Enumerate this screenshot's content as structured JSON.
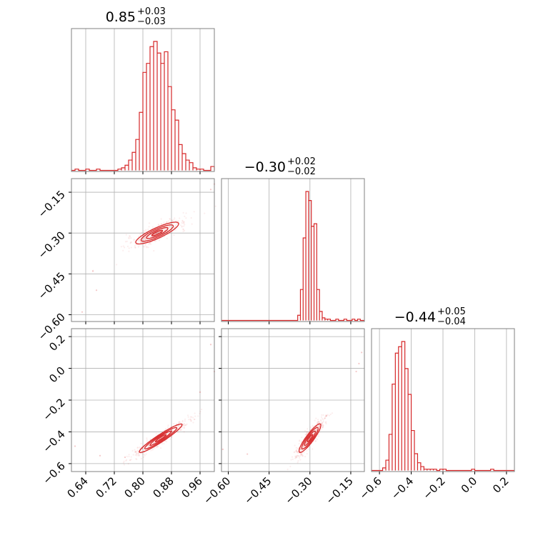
{
  "chart_data": {
    "type": "corner",
    "colors": {
      "line": "#d62728",
      "grid": "#b0b0b0",
      "frame": "#808080"
    },
    "grid": true,
    "parameters": [
      {
        "id": "p0",
        "range": [
          0.6,
          1.0
        ],
        "ticks": [
          0.64,
          0.72,
          0.8,
          0.88,
          0.96
        ],
        "tick_labels": [
          "0.64",
          "0.72",
          "0.80",
          "0.88",
          "0.96"
        ],
        "title": {
          "median": "0.85",
          "plus": "+0.03",
          "minus": "−0.03"
        }
      },
      {
        "id": "p1",
        "range": [
          -0.625,
          -0.1
        ],
        "ticks": [
          -0.6,
          -0.45,
          -0.3,
          -0.15
        ],
        "tick_labels": [
          "−0.60",
          "−0.45",
          "−0.30",
          "−0.15"
        ],
        "title": {
          "median": "−0.30",
          "plus": "+0.02",
          "minus": "−0.02"
        }
      },
      {
        "id": "p2",
        "range": [
          -0.65,
          0.25
        ],
        "ticks": [
          -0.6,
          -0.4,
          -0.2,
          0.0,
          0.2
        ],
        "tick_labels": [
          "−0.6",
          "−0.4",
          "−0.2",
          "0.0",
          "0.2"
        ],
        "title": {
          "median": "−0.44",
          "plus": "+0.05",
          "minus": "−0.04"
        }
      }
    ],
    "histograms": [
      {
        "param": 0,
        "edges": [
          0.6,
          0.61,
          0.62,
          0.63,
          0.64,
          0.65,
          0.66,
          0.67,
          0.68,
          0.69,
          0.7,
          0.71,
          0.72,
          0.73,
          0.74,
          0.75,
          0.76,
          0.77,
          0.78,
          0.79,
          0.8,
          0.81,
          0.82,
          0.83,
          0.84,
          0.85,
          0.86,
          0.87,
          0.88,
          0.89,
          0.9,
          0.91,
          0.92,
          0.93,
          0.94,
          0.95,
          0.96,
          0.97,
          0.98,
          0.99,
          1.0
        ],
        "counts": [
          0,
          1,
          0,
          0,
          1,
          0,
          0,
          1,
          0,
          0,
          0,
          0,
          0,
          1,
          2,
          4,
          8,
          14,
          24,
          45,
          76,
          83,
          96,
          100,
          91,
          83,
          92,
          65,
          47,
          39,
          20,
          13,
          8,
          6,
          2,
          1,
          1,
          0,
          0,
          3
        ]
      },
      {
        "param": 1,
        "edges": [
          -0.625,
          -0.615,
          -0.605,
          -0.595,
          -0.585,
          -0.575,
          -0.565,
          -0.555,
          -0.545,
          -0.535,
          -0.525,
          -0.515,
          -0.505,
          -0.495,
          -0.485,
          -0.475,
          -0.465,
          -0.455,
          -0.445,
          -0.435,
          -0.425,
          -0.415,
          -0.405,
          -0.395,
          -0.385,
          -0.375,
          -0.365,
          -0.355,
          -0.345,
          -0.335,
          -0.325,
          -0.315,
          -0.305,
          -0.295,
          -0.285,
          -0.275,
          -0.265,
          -0.255,
          -0.245,
          -0.235,
          -0.225,
          -0.215,
          -0.205,
          -0.195,
          -0.185,
          -0.175,
          -0.165,
          -0.155,
          -0.145,
          -0.135,
          -0.125,
          -0.115,
          -0.105
        ],
        "counts": [
          0,
          0,
          0,
          0,
          0,
          0,
          0,
          0,
          0,
          0,
          0,
          0,
          0,
          0,
          0,
          0,
          0,
          0,
          0,
          0,
          0,
          0,
          0,
          0,
          0,
          0,
          0,
          0,
          0,
          0,
          0,
          0,
          0,
          0,
          0,
          0,
          0,
          0,
          0,
          0,
          0,
          0,
          0,
          0,
          0,
          0,
          0,
          0,
          0,
          0,
          0,
          0
        ],
        "shape_counts": [
          [
            -0.345,
            -0.335,
            4
          ],
          [
            -0.335,
            -0.325,
            24
          ],
          [
            -0.325,
            -0.315,
            64
          ],
          [
            -0.315,
            -0.305,
            100
          ],
          [
            -0.305,
            -0.295,
            93
          ],
          [
            -0.295,
            -0.285,
            73
          ],
          [
            -0.285,
            -0.275,
            75
          ],
          [
            -0.275,
            -0.265,
            24
          ],
          [
            -0.265,
            -0.255,
            7
          ],
          [
            -0.255,
            -0.245,
            2
          ],
          [
            -0.245,
            -0.235,
            1
          ],
          [
            -0.235,
            -0.225,
            1
          ],
          [
            -0.205,
            -0.195,
            1
          ],
          [
            -0.175,
            -0.165,
            1
          ],
          [
            -0.145,
            -0.135,
            1
          ],
          [
            -0.125,
            -0.115,
            1
          ]
        ]
      },
      {
        "param": 2,
        "edges": [
          -0.65,
          0.25
        ],
        "counts": [],
        "shape_counts": [
          [
            -0.58,
            -0.56,
            2
          ],
          [
            -0.56,
            -0.54,
            8
          ],
          [
            -0.54,
            -0.52,
            28
          ],
          [
            -0.52,
            -0.5,
            67
          ],
          [
            -0.5,
            -0.48,
            91
          ],
          [
            -0.48,
            -0.46,
            96
          ],
          [
            -0.46,
            -0.44,
            100
          ],
          [
            -0.44,
            -0.42,
            79
          ],
          [
            -0.42,
            -0.4,
            59
          ],
          [
            -0.4,
            -0.38,
            31
          ],
          [
            -0.38,
            -0.36,
            13
          ],
          [
            -0.36,
            -0.34,
            6
          ],
          [
            -0.34,
            -0.32,
            3
          ],
          [
            -0.32,
            -0.3,
            1
          ],
          [
            -0.3,
            -0.28,
            1
          ],
          [
            -0.28,
            -0.26,
            1
          ],
          [
            -0.26,
            -0.24,
            1
          ],
          [
            -0.22,
            -0.2,
            1
          ],
          [
            -0.2,
            -0.18,
            1
          ],
          [
            -0.02,
            0.0,
            1
          ],
          [
            0.1,
            0.12,
            1
          ]
        ]
      }
    ],
    "joint": [
      {
        "x_param": 0,
        "y_param": 1,
        "center": [
          0.84,
          -0.3
        ],
        "sx": 0.03,
        "sy": 0.02,
        "rho": 0.85,
        "outliers": [
          [
            0.66,
            -0.44
          ],
          [
            0.67,
            -0.51
          ],
          [
            0.63,
            -0.59
          ],
          [
            1.0,
            -0.12
          ],
          [
            0.99,
            -0.14
          ]
        ]
      },
      {
        "x_param": 0,
        "y_param": 2,
        "center": [
          0.85,
          -0.44
        ],
        "sx": 0.03,
        "sy": 0.045,
        "rho": 0.95,
        "outliers": [
          [
            0.61,
            -0.49
          ],
          [
            0.68,
            -0.55
          ],
          [
            0.96,
            -0.15
          ],
          [
            0.99,
            0.15
          ],
          [
            1.0,
            -0.02
          ],
          [
            0.75,
            -0.56
          ]
        ]
      },
      {
        "x_param": 1,
        "y_param": 2,
        "center": [
          -0.3,
          -0.44
        ],
        "sx": 0.02,
        "sy": 0.045,
        "rho": 0.9,
        "outliers": [
          [
            -0.62,
            -0.51
          ],
          [
            -0.53,
            -0.54
          ],
          [
            -0.13,
            -0.02
          ],
          [
            -0.11,
            0.1
          ],
          [
            -0.12,
            0.03
          ],
          [
            -0.24,
            -0.3
          ]
        ]
      }
    ],
    "contour_levels_sigma": [
      0.5,
      1.0,
      1.5,
      2.0
    ]
  }
}
